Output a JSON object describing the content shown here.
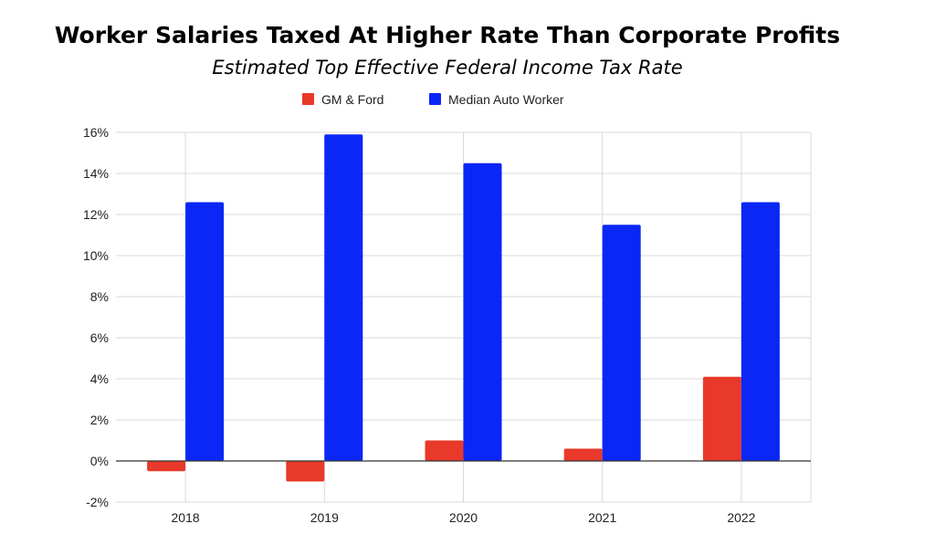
{
  "chart_data": {
    "type": "bar",
    "title": "Worker Salaries Taxed At Higher Rate Than Corporate Profits",
    "subtitle": "Estimated Top Effective Federal Income Tax Rate",
    "categories": [
      "2018",
      "2019",
      "2020",
      "2021",
      "2022"
    ],
    "series": [
      {
        "name": "GM & Ford",
        "color": "#e8392a",
        "values": [
          -0.5,
          -1.0,
          1.0,
          0.6,
          4.1
        ]
      },
      {
        "name": "Median Auto Worker",
        "color": "#0a27f5",
        "values": [
          12.6,
          15.9,
          14.5,
          11.5,
          12.6
        ]
      }
    ],
    "ylim": [
      -2,
      16
    ],
    "y_ticks": [
      -2,
      0,
      2,
      4,
      6,
      8,
      10,
      12,
      14,
      16
    ],
    "y_tick_labels": [
      "-2%",
      "0%",
      "2%",
      "4%",
      "6%",
      "8%",
      "10%",
      "12%",
      "14%",
      "16%"
    ],
    "grid": true,
    "legend_position": "top-center",
    "xlabel": "",
    "ylabel": ""
  }
}
